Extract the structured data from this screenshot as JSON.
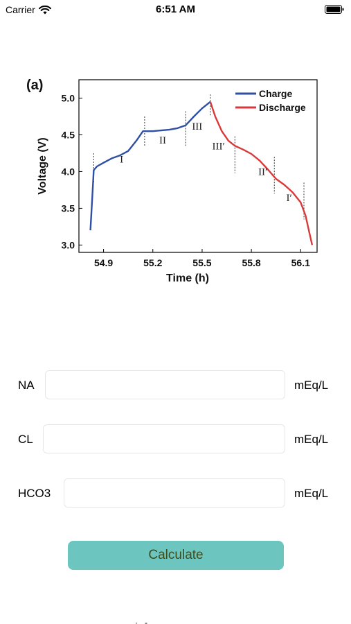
{
  "status_bar": {
    "carrier": "Carrier",
    "time": "6:51 AM",
    "icons": [
      "wifi-icon",
      "battery-icon"
    ]
  },
  "chart_data": {
    "type": "line",
    "panel_label": "(a)",
    "xlabel": "Time (h)",
    "ylabel": "Voltage (V)",
    "xlim": [
      54.75,
      56.2
    ],
    "ylim": [
      2.9,
      5.25
    ],
    "x_ticks": [
      "54.9",
      "55.2",
      "55.5",
      "55.8",
      "56.1"
    ],
    "y_ticks": [
      "3.0",
      "3.5",
      "4.0",
      "4.5",
      "5.0"
    ],
    "legend_position": "top-right",
    "series": [
      {
        "name": "Charge",
        "color": "#2f4fa3",
        "x": [
          54.82,
          54.83,
          54.84,
          54.86,
          54.9,
          54.95,
          55.0,
          55.05,
          55.1,
          55.14,
          55.16,
          55.2,
          55.25,
          55.3,
          55.35,
          55.4,
          55.45,
          55.5,
          55.55
        ],
        "y": [
          3.2,
          3.6,
          4.02,
          4.07,
          4.12,
          4.18,
          4.22,
          4.28,
          4.42,
          4.55,
          4.55,
          4.55,
          4.56,
          4.57,
          4.59,
          4.63,
          4.75,
          4.86,
          4.95
        ]
      },
      {
        "name": "Discharge",
        "color": "#d83a3a",
        "x": [
          55.55,
          55.58,
          55.62,
          55.66,
          55.7,
          55.75,
          55.8,
          55.85,
          55.9,
          55.95,
          56.0,
          56.05,
          56.1,
          56.13,
          56.15,
          56.17
        ],
        "y": [
          4.95,
          4.75,
          4.55,
          4.42,
          4.35,
          4.3,
          4.24,
          4.15,
          4.03,
          3.9,
          3.82,
          3.72,
          3.58,
          3.4,
          3.2,
          3.0
        ]
      }
    ],
    "region_markers": [
      54.84,
      55.15,
      55.4,
      55.55,
      55.7,
      55.94,
      56.12
    ],
    "annotations": [
      {
        "text": "I",
        "x": 55.01,
        "y": 4.12
      },
      {
        "text": "II",
        "x": 55.26,
        "y": 4.38
      },
      {
        "text": "III",
        "x": 55.47,
        "y": 4.57
      },
      {
        "text": "III′",
        "x": 55.6,
        "y": 4.3
      },
      {
        "text": "II′",
        "x": 55.87,
        "y": 3.95
      },
      {
        "text": "I′",
        "x": 56.03,
        "y": 3.6
      }
    ]
  },
  "form": {
    "rows": [
      {
        "label": "NA",
        "value": "",
        "unit": "mEq/L"
      },
      {
        "label": "CL",
        "value": "",
        "unit": "mEq/L"
      },
      {
        "label": "HCO3",
        "value": "",
        "unit": "mEq/L"
      }
    ],
    "calculate_label": "Calculate"
  },
  "bottom_glyph": "·  .  -"
}
